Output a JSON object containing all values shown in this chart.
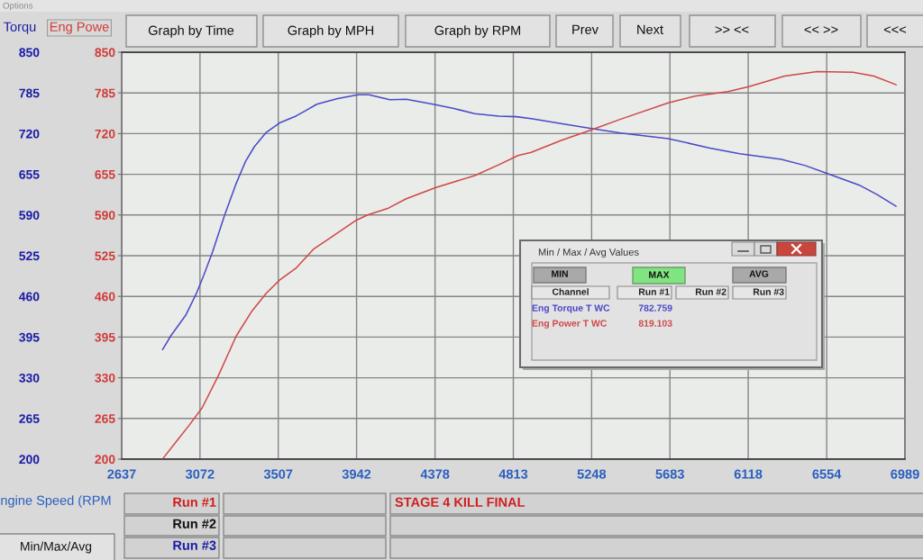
{
  "chart_data": {
    "type": "line",
    "xlabel": "ngine Speed (RPM",
    "ylabel": "Torqu",
    "y2label": "Eng Powe",
    "xlim": [
      2637,
      6989
    ],
    "xticks": [
      2637,
      3072,
      3507,
      3942,
      4378,
      4813,
      5248,
      5683,
      6118,
      6554,
      6989
    ],
    "ylim": [
      200,
      850
    ],
    "yticks": [
      200,
      265,
      330,
      395,
      460,
      525,
      590,
      655,
      720,
      785,
      850
    ],
    "y2lim": [
      200,
      850
    ],
    "y2ticks": [
      200,
      265,
      330,
      395,
      460,
      525,
      590,
      655,
      720,
      785,
      850
    ],
    "grid": true,
    "series": [
      {
        "name": "Eng Torque T WC",
        "color": "#4a4ac8",
        "x": [
          2864,
          2910,
          2993,
          3051,
          3092,
          3142,
          3208,
          3274,
          3324,
          3374,
          3440,
          3514,
          3605,
          3655,
          3721,
          3837,
          3950,
          4011,
          4069,
          4127,
          4218,
          4367,
          4483,
          4599,
          4731,
          4830,
          4912,
          5078,
          5247,
          5409,
          5674,
          5905,
          6071,
          6303,
          6435,
          6551,
          6733,
          6832,
          6940
        ],
        "values": [
          375,
          397,
          430,
          464,
          493,
          531,
          589,
          641,
          675,
          699,
          722,
          737,
          748,
          756,
          767,
          776,
          782,
          782,
          778,
          774,
          775,
          767,
          760,
          752,
          748,
          747,
          744,
          736,
          728,
          721,
          712,
          697,
          688,
          679,
          669,
          657,
          638,
          623,
          604
        ]
      },
      {
        "name": "Eng Power T WC",
        "color": "#d04848",
        "axis": "y2",
        "x": [
          2869,
          2943,
          3009,
          3084,
          3175,
          3274,
          3357,
          3440,
          3514,
          3605,
          3705,
          3804,
          3936,
          4003,
          4119,
          4218,
          4383,
          4599,
          4731,
          4839,
          4912,
          5078,
          5247,
          5409,
          5674,
          5823,
          6005,
          6121,
          6320,
          6501,
          6700,
          6816,
          6940
        ],
        "values": [
          202,
          229,
          253,
          282,
          334,
          397,
          435,
          465,
          486,
          505,
          536,
          555,
          581,
          590,
          601,
          616,
          634,
          653,
          670,
          685,
          690,
          709,
          726,
          743,
          769,
          780,
          787,
          795,
          812,
          819,
          818,
          812,
          798
        ]
      }
    ],
    "annotations": [
      "Options",
      "Graph by Time",
      "Graph by MPH",
      "Graph by RPM",
      "Prev",
      "Next",
      ">> <<",
      "<< >>",
      "<<<",
      "Min / Max / Avg Values",
      "MIN",
      "MAX",
      "AVG",
      "Channel",
      "Run #1",
      "Run #2",
      "Run #3",
      "782.759",
      "819.103",
      "Run #1",
      "Run #2",
      "Run #3",
      "STAGE 4 KILL FINAL",
      "Min/Max/Avg"
    ]
  }
}
